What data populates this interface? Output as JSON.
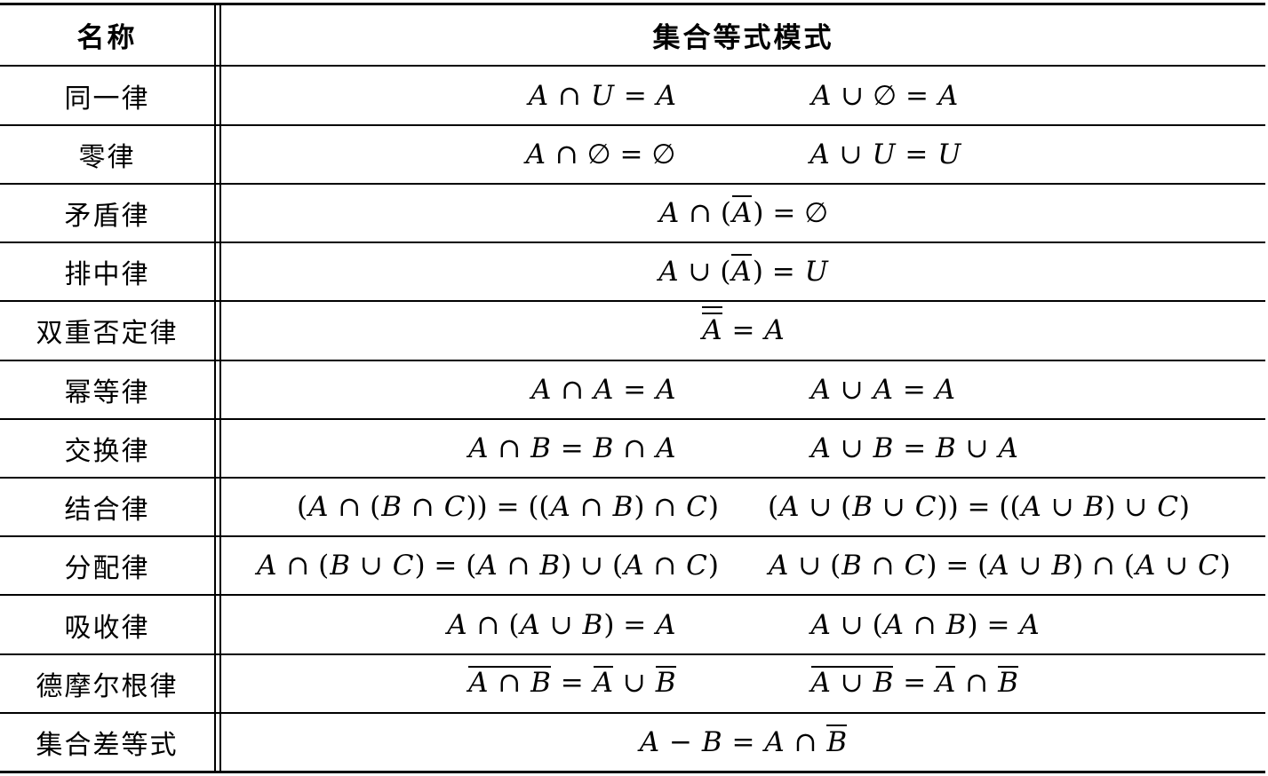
{
  "table": {
    "header": {
      "name_label": "名称",
      "pattern_label": "集合等式模式"
    },
    "rows": [
      {
        "name": "同一律",
        "formulas": [
          "A ∩ U = A",
          "A ∪ ∅ = A"
        ]
      },
      {
        "name": "零律",
        "formulas": [
          "A ∩ ∅ = ∅",
          "A ∪ U = U"
        ]
      },
      {
        "name": "矛盾律",
        "formulas": [
          "A ∩ (ov{A}) = ∅"
        ]
      },
      {
        "name": "排中律",
        "formulas": [
          "A ∪ (ov{A}) = U"
        ]
      },
      {
        "name": "双重否定律",
        "formulas": [
          "ov{ov{A}} = A"
        ]
      },
      {
        "name": "幂等律",
        "formulas": [
          "A ∩ A = A",
          "A ∪ A = A"
        ]
      },
      {
        "name": "交换律",
        "formulas": [
          "A ∩ B = B ∩ A",
          "A ∪ B = B ∪ A"
        ]
      },
      {
        "name": "结合律",
        "formulas": [
          "(A ∩ (B ∩ C)) = ((A ∩ B) ∩ C)",
          "(A ∪ (B ∪ C)) = ((A ∪ B) ∪ C)"
        ]
      },
      {
        "name": "分配律",
        "formulas": [
          "A ∩ (B ∪ C) = (A ∩ B) ∪ (A ∩ C)",
          "A ∪ (B ∩ C) = (A ∪ B) ∩ (A ∪ C)"
        ]
      },
      {
        "name": "吸收律",
        "formulas": [
          "A ∩ (A ∪ B) = A",
          "A ∪ (A ∩ B) = A"
        ]
      },
      {
        "name": "德摩尔根律",
        "formulas": [
          "ov{A ∩ B} = ov{A} ∪ ov{B}",
          "ov{A ∪ B} = ov{A} ∩ ov{B}"
        ]
      },
      {
        "name": "集合差等式",
        "formulas": [
          "A − B = A ∩ ov{B}"
        ]
      }
    ]
  }
}
